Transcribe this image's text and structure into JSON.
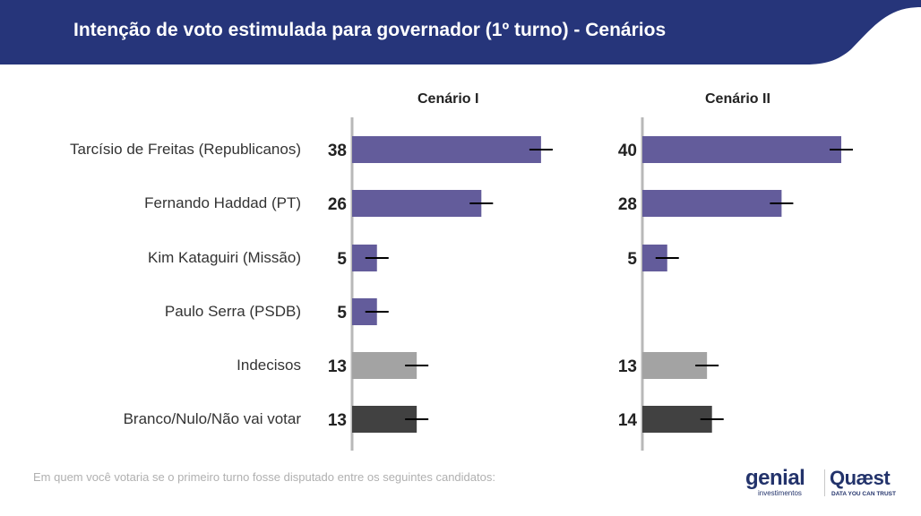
{
  "header": {
    "title": "Intenção de voto estimulada para governador (1º turno) - Cenários",
    "color": "#26357a"
  },
  "chart_data": {
    "type": "bar",
    "orientation": "horizontal",
    "categories": [
      "Tarcísio de Freitas (Republicanos)",
      "Fernando Haddad (PT)",
      "Kim Kataguiri (Missão)",
      "Paulo Serra (PSDB)",
      "Indecisos",
      "Branco/Nulo/Não vai votar"
    ],
    "category_colors": [
      "#635c9b",
      "#635c9b",
      "#635c9b",
      "#635c9b",
      "#a3a3a3",
      "#414141"
    ],
    "error_bars": true,
    "panels": [
      {
        "title": "Cenário I",
        "values": [
          38,
          26,
          5,
          5,
          13,
          13
        ]
      },
      {
        "title": "Cenário II",
        "values": [
          40,
          28,
          5,
          null,
          13,
          14
        ]
      }
    ]
  },
  "footnote": "Em quem você votaria se o primeiro turno fosse disputado entre os seguintes candidatos:",
  "logos": {
    "genial": "genial",
    "genial_sub": "investimentos",
    "quaest": "Quæst",
    "quaest_sub": "DATA YOU CAN TRUST"
  }
}
